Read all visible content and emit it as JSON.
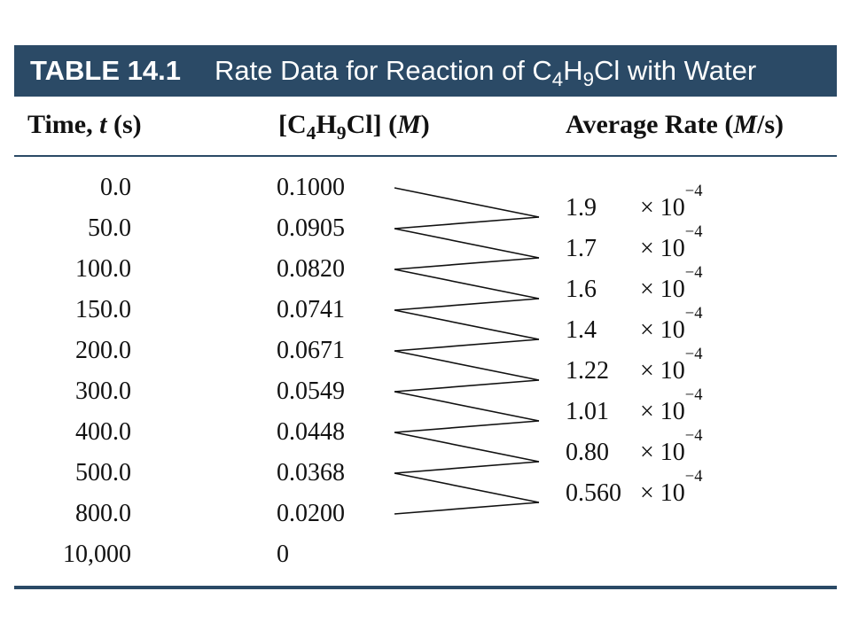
{
  "title": {
    "number": "TABLE 14.1",
    "text": "Rate Data for Reaction of C",
    "formula_sub1": "4",
    "text2": "H",
    "formula_sub2": "9",
    "text3": "Cl with Water"
  },
  "headers": {
    "time": {
      "prefix": "Time, ",
      "var": "t",
      "unit": " (s)"
    },
    "conc": {
      "prefix": "[C",
      "sub1": "4",
      "mid": "H",
      "sub2": "9",
      "suffix": "Cl] (",
      "unit": "M",
      "close": ")"
    },
    "rate": {
      "prefix": "Average Rate (",
      "unit": "M",
      "suffix": "/s)"
    }
  },
  "rows": [
    {
      "time": "0.0",
      "conc": "0.1000"
    },
    {
      "time": "50.0",
      "conc": "0.0905"
    },
    {
      "time": "100.0",
      "conc": "0.0820"
    },
    {
      "time": "150.0",
      "conc": "0.0741"
    },
    {
      "time": "200.0",
      "conc": "0.0671"
    },
    {
      "time": "300.0",
      "conc": "0.0549"
    },
    {
      "time": "400.0",
      "conc": "0.0448"
    },
    {
      "time": "500.0",
      "conc": "0.0368"
    },
    {
      "time": "800.0",
      "conc": "0.0200"
    },
    {
      "time": "10,000",
      "conc": "0"
    }
  ],
  "rates": [
    {
      "value": "1.9",
      "times": "× 10",
      "exp": "−4"
    },
    {
      "value": "1.7",
      "times": "× 10",
      "exp": "−4"
    },
    {
      "value": "1.6",
      "times": "× 10",
      "exp": "−4"
    },
    {
      "value": "1.4",
      "times": "× 10",
      "exp": "−4"
    },
    {
      "value": "1.22",
      "times": "× 10",
      "exp": "−4"
    },
    {
      "value": "1.01",
      "times": "× 10",
      "exp": "−4"
    },
    {
      "value": "0.80",
      "times": "× 10",
      "exp": "−4"
    },
    {
      "value": "0.560",
      "times": "× 10",
      "exp": "−4"
    }
  ],
  "colors": {
    "banner": "#2b4a66",
    "line": "#111111"
  }
}
